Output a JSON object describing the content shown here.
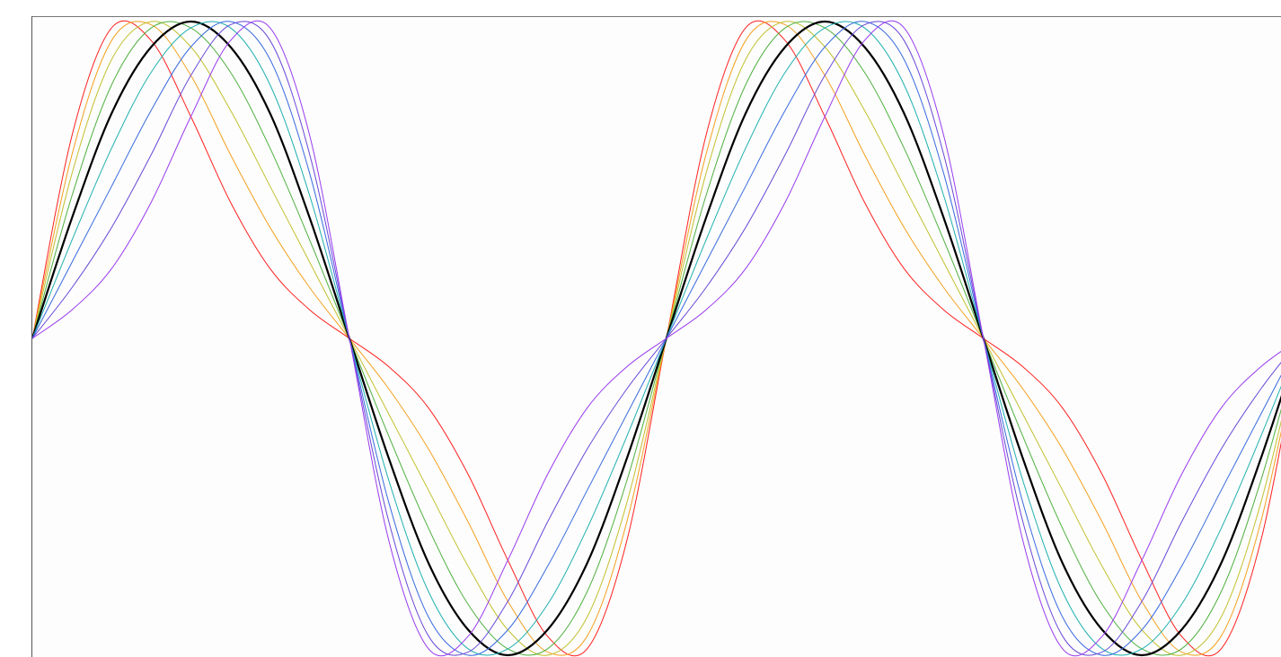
{
  "chart_data": {
    "type": "line",
    "x": [
      0,
      22.5,
      45,
      67.5,
      90,
      112.5,
      135,
      157.5,
      180,
      202.5,
      225,
      247.5,
      270,
      292.5,
      315,
      337.5,
      360,
      382.5,
      405,
      427.5,
      450,
      472.5,
      495,
      517.5,
      540,
      562.5,
      585,
      607.5,
      630,
      652.5,
      675,
      697.5,
      720
    ],
    "xlim": [
      0,
      709
    ],
    "ylim": [
      -1,
      1
    ],
    "series": [
      {
        "color": "#ff2020",
        "values": [
          0,
          0.64,
          0.98,
          0.94,
          0.7,
          0.43,
          0.22,
          0.09,
          0,
          -0.09,
          -0.22,
          -0.43,
          -0.7,
          -0.94,
          -0.98,
          -0.64,
          0,
          0.64,
          0.98,
          0.94,
          0.7,
          0.43,
          0.22,
          0.09,
          0,
          -0.09,
          -0.22,
          -0.43,
          -0.7,
          -0.94,
          -0.98,
          -0.64,
          0
        ]
      },
      {
        "color": "#f5a020",
        "values": [
          0,
          0.58,
          0.94,
          0.99,
          0.83,
          0.58,
          0.35,
          0.16,
          0,
          -0.16,
          -0.35,
          -0.58,
          -0.83,
          -0.99,
          -0.94,
          -0.58,
          0,
          0.58,
          0.94,
          0.99,
          0.83,
          0.58,
          0.35,
          0.16,
          0,
          -0.16,
          -0.35,
          -0.58,
          -0.83,
          -0.99,
          -0.94,
          -0.58,
          0
        ]
      },
      {
        "color": "#c4c030",
        "values": [
          0,
          0.52,
          0.88,
          1,
          0.92,
          0.72,
          0.48,
          0.24,
          0,
          -0.24,
          -0.48,
          -0.72,
          -0.92,
          -1,
          -0.88,
          -0.52,
          0,
          0.52,
          0.88,
          1,
          0.92,
          0.72,
          0.48,
          0.24,
          0,
          -0.24,
          -0.48,
          -0.72,
          -0.92,
          -1,
          -0.88,
          -0.52,
          0
        ]
      },
      {
        "color": "#50b040",
        "values": [
          0,
          0.45,
          0.8,
          0.98,
          0.98,
          0.84,
          0.6,
          0.31,
          0,
          -0.31,
          -0.6,
          -0.84,
          -0.98,
          -0.98,
          -0.8,
          -0.45,
          0,
          0.45,
          0.8,
          0.98,
          0.98,
          0.84,
          0.6,
          0.31,
          0,
          -0.31,
          -0.6,
          -0.84,
          -0.98,
          -0.98,
          -0.8,
          -0.45,
          0
        ]
      },
      {
        "color": "#000000",
        "values": [
          0,
          0.38,
          0.71,
          0.92,
          1,
          0.92,
          0.71,
          0.38,
          0,
          -0.38,
          -0.71,
          -0.92,
          -1,
          -0.92,
          -0.71,
          -0.38,
          0,
          0.38,
          0.71,
          0.92,
          1,
          0.92,
          0.71,
          0.38,
          0,
          -0.38,
          -0.71,
          -0.92,
          -1,
          -0.92,
          -0.71,
          -0.38,
          0
        ]
      },
      {
        "color": "#20b0b0",
        "values": [
          0,
          0.31,
          0.6,
          0.84,
          0.98,
          0.98,
          0.8,
          0.45,
          0,
          -0.45,
          -0.8,
          -0.98,
          -0.98,
          -0.84,
          -0.6,
          -0.31,
          0,
          0.31,
          0.6,
          0.84,
          0.98,
          0.98,
          0.8,
          0.45,
          0,
          -0.45,
          -0.8,
          -0.98,
          -0.98,
          -0.84,
          -0.6,
          -0.31,
          0
        ]
      },
      {
        "color": "#3a6ae0",
        "values": [
          0,
          0.24,
          0.48,
          0.72,
          0.92,
          1,
          0.88,
          0.52,
          0,
          -0.52,
          -0.88,
          -1,
          -0.92,
          -0.72,
          -0.48,
          -0.24,
          0,
          0.24,
          0.48,
          0.72,
          0.92,
          1,
          0.88,
          0.52,
          0,
          -0.52,
          -0.88,
          -1,
          -0.92,
          -0.72,
          -0.48,
          -0.24,
          0
        ]
      },
      {
        "color": "#6a48d8",
        "values": [
          0,
          0.16,
          0.35,
          0.58,
          0.83,
          0.99,
          0.94,
          0.58,
          0,
          -0.58,
          -0.94,
          -0.99,
          -0.83,
          -0.58,
          -0.35,
          -0.16,
          0,
          0.16,
          0.35,
          0.58,
          0.83,
          0.99,
          0.94,
          0.58,
          0,
          -0.58,
          -0.94,
          -0.99,
          -0.83,
          -0.58,
          -0.35,
          -0.16,
          0
        ]
      },
      {
        "color": "#9a3af0",
        "values": [
          0,
          0.09,
          0.22,
          0.43,
          0.7,
          0.94,
          0.98,
          0.64,
          0,
          -0.64,
          -0.98,
          -0.94,
          -0.7,
          -0.43,
          -0.22,
          -0.09,
          0,
          0.09,
          0.22,
          0.43,
          0.7,
          0.94,
          0.98,
          0.64,
          0,
          -0.64,
          -0.98,
          -0.94,
          -0.7,
          -0.43,
          -0.22,
          -0.09,
          0
        ]
      }
    ]
  }
}
